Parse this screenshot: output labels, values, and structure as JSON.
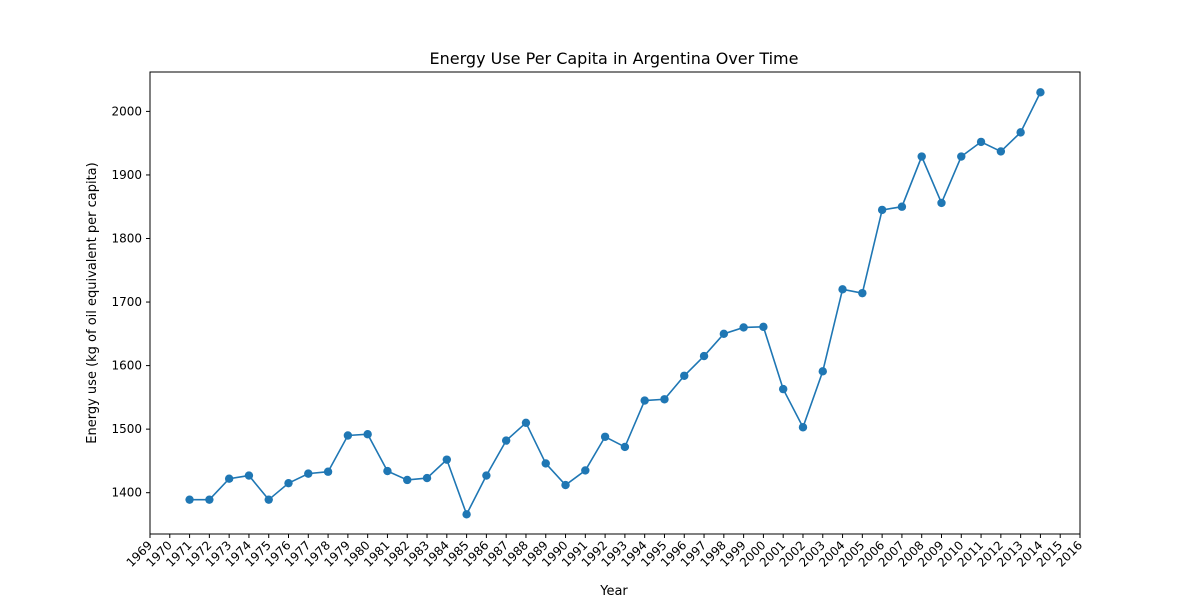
{
  "chart_data": {
    "type": "line",
    "title": "Energy Use Per Capita in Argentina Over Time",
    "xlabel": "Year",
    "ylabel": "Energy use (kg of oil equivalent per capita)",
    "xlim": [
      1969,
      2016
    ],
    "ylim": [
      1335,
      2062
    ],
    "x_ticks": [
      1969,
      1970,
      1971,
      1972,
      1973,
      1974,
      1975,
      1976,
      1977,
      1978,
      1979,
      1980,
      1981,
      1982,
      1983,
      1984,
      1985,
      1986,
      1987,
      1988,
      1989,
      1990,
      1991,
      1992,
      1993,
      1994,
      1995,
      1996,
      1997,
      1998,
      1999,
      2000,
      2001,
      2002,
      2003,
      2004,
      2005,
      2006,
      2007,
      2008,
      2009,
      2010,
      2011,
      2012,
      2013,
      2014,
      2015,
      2016
    ],
    "y_ticks": [
      1400,
      1500,
      1600,
      1700,
      1800,
      1900,
      2000
    ],
    "grid": false,
    "legend": "none",
    "series": [
      {
        "color": "#1f77b4",
        "marker": "circle",
        "x": [
          1971,
          1972,
          1973,
          1974,
          1975,
          1976,
          1977,
          1978,
          1979,
          1980,
          1981,
          1982,
          1983,
          1984,
          1985,
          1986,
          1987,
          1988,
          1989,
          1990,
          1991,
          1992,
          1993,
          1994,
          1995,
          1996,
          1997,
          1998,
          1999,
          2000,
          2001,
          2002,
          2003,
          2004,
          2005,
          2006,
          2007,
          2008,
          2009,
          2010,
          2011,
          2012,
          2013,
          2014
        ],
        "values": [
          1389,
          1389,
          1422,
          1427,
          1389,
          1415,
          1430,
          1433,
          1490,
          1492,
          1434,
          1420,
          1423,
          1452,
          1366,
          1427,
          1482,
          1510,
          1446,
          1412,
          1435,
          1488,
          1472,
          1545,
          1547,
          1584,
          1615,
          1650,
          1660,
          1661,
          1563,
          1503,
          1591,
          1720,
          1714,
          1845,
          1850,
          1929,
          1856,
          1929,
          1952,
          1937,
          1967,
          2030
        ]
      }
    ]
  }
}
